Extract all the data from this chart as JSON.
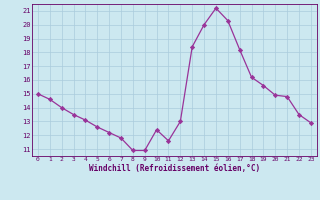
{
  "x": [
    0,
    1,
    2,
    3,
    4,
    5,
    6,
    7,
    8,
    9,
    10,
    11,
    12,
    13,
    14,
    15,
    16,
    17,
    18,
    19,
    20,
    21,
    22,
    23
  ],
  "y": [
    15.0,
    14.6,
    14.0,
    13.5,
    13.1,
    12.6,
    12.2,
    11.8,
    10.9,
    10.9,
    12.4,
    11.6,
    13.0,
    18.4,
    20.0,
    21.2,
    20.3,
    18.2,
    16.2,
    15.6,
    14.9,
    14.8,
    13.5,
    12.9
  ],
  "line_color": "#993399",
  "marker": "D",
  "marker_size": 2.2,
  "background_color": "#cce8f0",
  "grid_color": "#aaccdd",
  "xlabel": "Windchill (Refroidissement éolien,°C)",
  "xlabel_color": "#660066",
  "tick_color": "#660066",
  "label_color": "#660066",
  "ylim": [
    10.5,
    21.5
  ],
  "xlim": [
    -0.5,
    23.5
  ],
  "yticks": [
    11,
    12,
    13,
    14,
    15,
    16,
    17,
    18,
    19,
    20,
    21
  ],
  "xticks": [
    0,
    1,
    2,
    3,
    4,
    5,
    6,
    7,
    8,
    9,
    10,
    11,
    12,
    13,
    14,
    15,
    16,
    17,
    18,
    19,
    20,
    21,
    22,
    23
  ]
}
